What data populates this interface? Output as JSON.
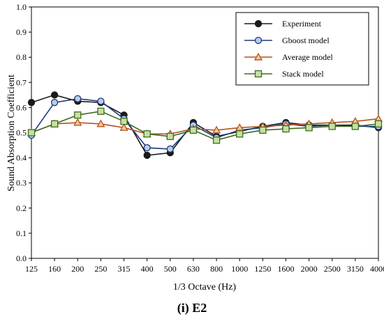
{
  "caption": "(i) E2",
  "chart_data": {
    "type": "line",
    "xlabel": "1/3 Octave (Hz)",
    "ylabel": "Sound Absorption Coefficient",
    "ylim": [
      0,
      1
    ],
    "yticks": [
      "0.0",
      "0.1",
      "0.2",
      "0.3",
      "0.4",
      "0.5",
      "0.6",
      "0.7",
      "0.8",
      "0.9",
      "1.0"
    ],
    "categories": [
      "125",
      "160",
      "200",
      "250",
      "315",
      "400",
      "500",
      "630",
      "800",
      "1000",
      "1250",
      "1600",
      "2000",
      "2500",
      "3150",
      "4000"
    ],
    "grid": false,
    "legend_position": "top-right",
    "series": [
      {
        "name": "Experiment",
        "color": "#1a1a1a",
        "marker": "circle",
        "marker_fill": "#1a1a1a",
        "values": [
          0.62,
          0.65,
          0.625,
          0.62,
          0.57,
          0.41,
          0.42,
          0.54,
          0.485,
          0.505,
          0.525,
          0.54,
          0.53,
          0.53,
          0.53,
          0.52
        ]
      },
      {
        "name": "Gboost model",
        "color": "#1f3a7a",
        "marker": "circle",
        "marker_fill": "#b8cdea",
        "values": [
          0.49,
          0.62,
          0.635,
          0.625,
          0.555,
          0.44,
          0.435,
          0.53,
          0.48,
          0.51,
          0.52,
          0.535,
          0.525,
          0.53,
          0.525,
          0.525
        ]
      },
      {
        "name": "Average model",
        "color": "#b5521b",
        "marker": "triangle",
        "marker_fill": "#f2c7a5",
        "values": [
          0.5,
          0.535,
          0.54,
          0.535,
          0.52,
          0.495,
          0.495,
          0.515,
          0.51,
          0.52,
          0.525,
          0.53,
          0.535,
          0.54,
          0.545,
          0.555
        ]
      },
      {
        "name": "Stack model",
        "color": "#3d6b1e",
        "marker": "square",
        "marker_fill": "#c6e0a4",
        "values": [
          0.5,
          0.535,
          0.57,
          0.585,
          0.545,
          0.495,
          0.485,
          0.51,
          0.47,
          0.495,
          0.51,
          0.515,
          0.52,
          0.525,
          0.525,
          0.535
        ]
      }
    ]
  }
}
